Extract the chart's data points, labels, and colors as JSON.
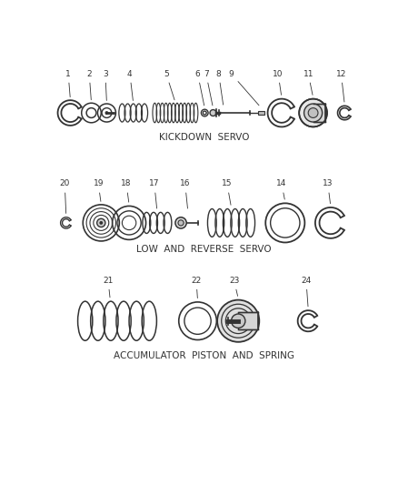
{
  "bg_color": "#ffffff",
  "line_color": "#333333",
  "section1_label": "KICKDOWN  SERVO",
  "section2_label": "LOW  AND  REVERSE  SERVO",
  "section3_label": "ACCUMULATOR  PISTON  AND  SPRING",
  "fig_width": 4.38,
  "fig_height": 5.33,
  "dpi": 100
}
